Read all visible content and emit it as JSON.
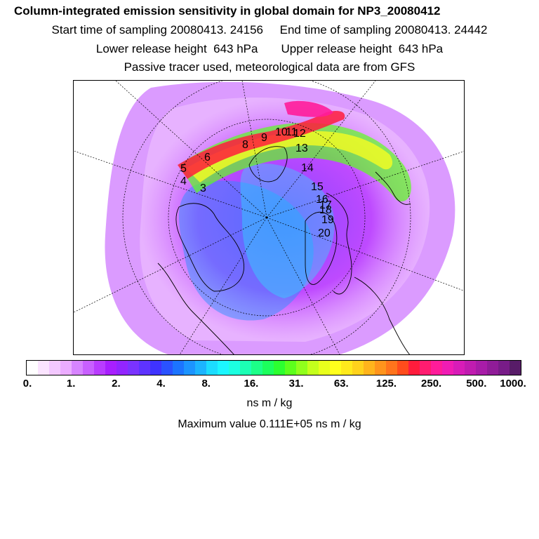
{
  "header": {
    "title": "Column-integrated emission sensitivity in global domain for NP3_20080412",
    "line2": "Start time of sampling 20080413. 24156     End time of sampling 20080413. 24442",
    "line3": "Lower release height  643 hPa       Upper release height  643 hPa",
    "line4": "Passive tracer used, meteorological data are from GFS"
  },
  "map": {
    "trajectory_labels": [
      "3",
      "4",
      "5",
      "6",
      "8",
      "9",
      "10",
      "11",
      "12",
      "13",
      "14",
      "15",
      "16",
      "17",
      "18",
      "19",
      "20"
    ]
  },
  "colorbar": {
    "colors": [
      "#ffffff",
      "#fbe4ff",
      "#f3c8ff",
      "#ebacff",
      "#d784ff",
      "#c860ff",
      "#b93cff",
      "#a81fff",
      "#9225ff",
      "#7a33ff",
      "#5e33ff",
      "#3f33ff",
      "#2a52ff",
      "#1c74ff",
      "#1c94ff",
      "#1cb4ff",
      "#1cdcff",
      "#1cf6ff",
      "#1cffe0",
      "#1cffb4",
      "#1cff88",
      "#1cff5c",
      "#2cff30",
      "#5cff1c",
      "#90ff1c",
      "#c4ff1c",
      "#e8ff1c",
      "#ffff1c",
      "#ffea1c",
      "#ffd21c",
      "#ffb41c",
      "#ff941c",
      "#ff741c",
      "#ff4c1c",
      "#ff1c3c",
      "#ff1c70",
      "#ff1c9a",
      "#f01cb4",
      "#d81cb8",
      "#c01cb0",
      "#a81ca8",
      "#901c98",
      "#781c88",
      "#581c68"
    ],
    "tick_labels": [
      "0.",
      "1.",
      "2.",
      "4.",
      "8.",
      "16.",
      "31.",
      "63.",
      "125.",
      "250.",
      "500.",
      "1000."
    ],
    "units": "ns m / kg"
  },
  "max_value_text": "Maximum value  0.111E+05 ns m / kg"
}
